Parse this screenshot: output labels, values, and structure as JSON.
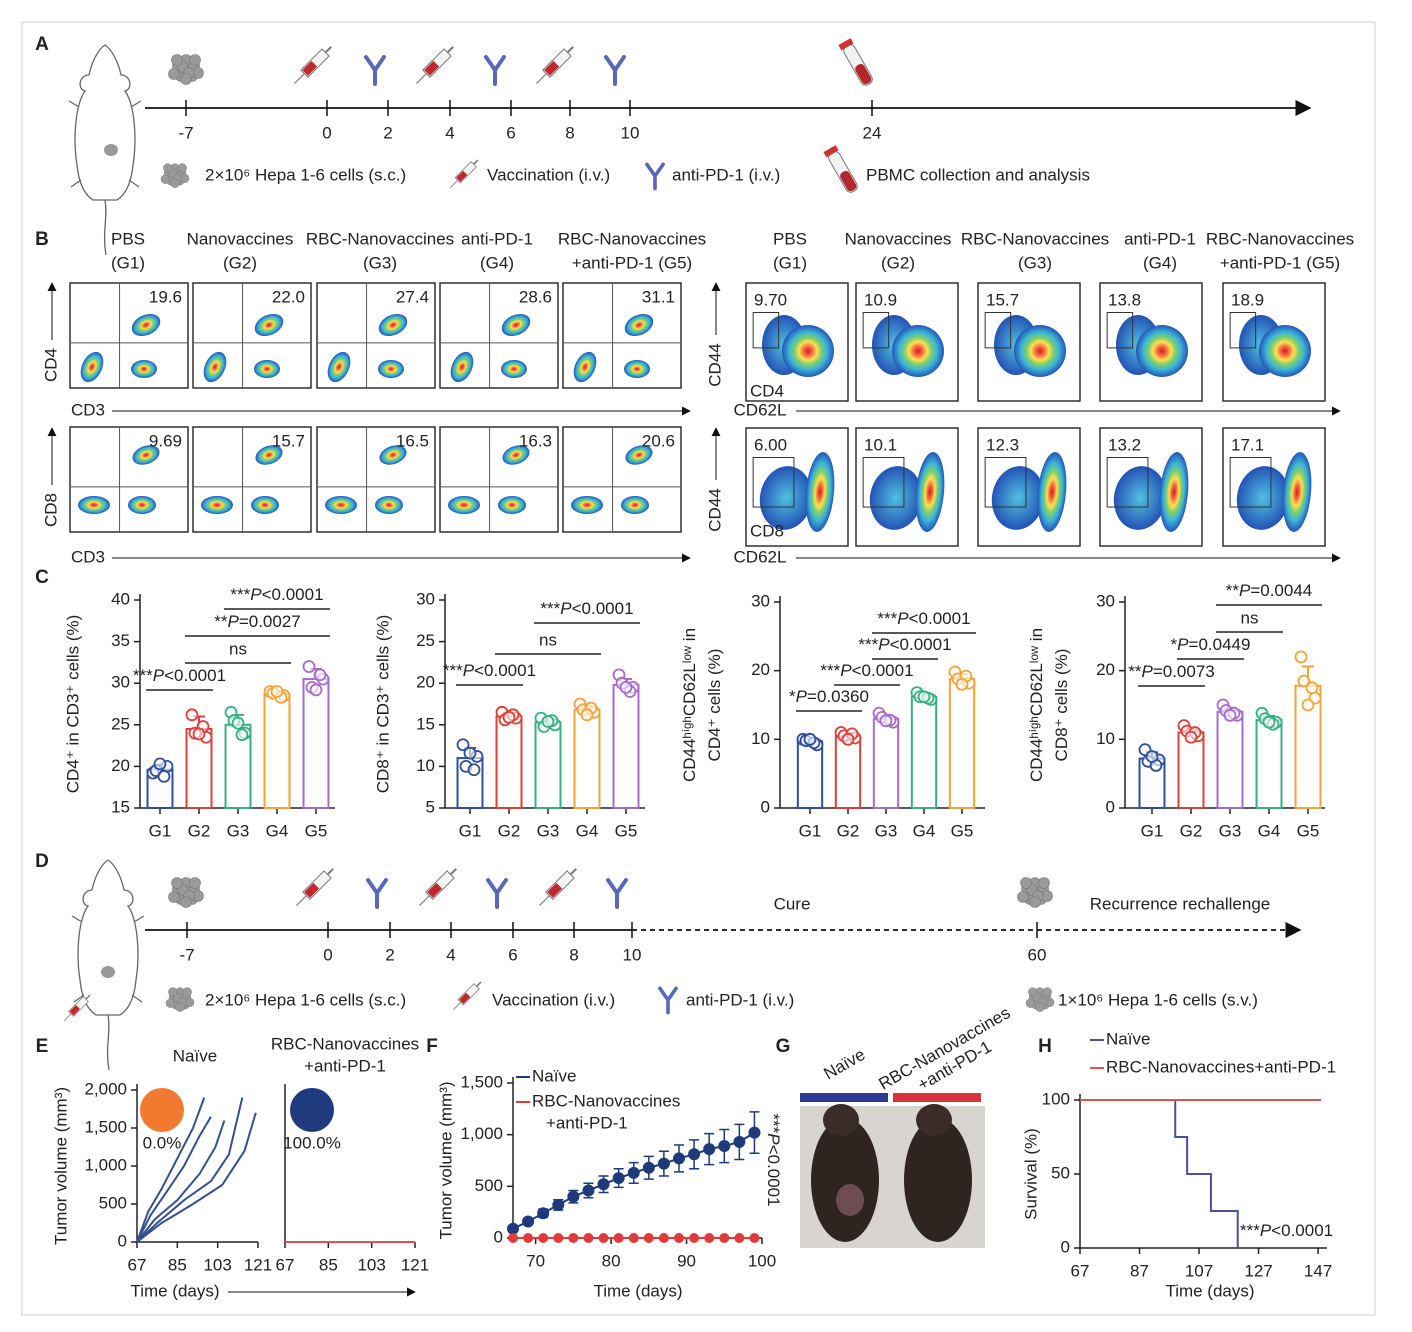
{
  "panelA": {
    "label": "A",
    "ticks": [
      -7,
      0,
      2,
      4,
      6,
      8,
      10,
      24
    ],
    "legend": [
      "2×10⁶ Hepa 1-6 cells (s.c.)",
      "Vaccination (i.v.)",
      "anti-PD-1 (i.v.)",
      "PBMC collection and analysis"
    ]
  },
  "panelB": {
    "label": "B",
    "groups": [
      [
        "PBS",
        "(G1)"
      ],
      [
        "Nanovaccines",
        "(G2)"
      ],
      [
        "RBC-Nanovaccines",
        "(G3)"
      ],
      [
        "anti-PD-1",
        "(G4)"
      ],
      [
        "RBC-Nanovaccines",
        "+anti-PD-1 (G5)"
      ]
    ],
    "left": {
      "y_labels": [
        "CD4",
        "CD8"
      ],
      "x_label": "CD3",
      "rows": [
        [
          "19.6",
          "22.0",
          "27.4",
          "28.6",
          "31.1"
        ],
        [
          "9.69",
          "15.7",
          "16.5",
          "16.3",
          "20.6"
        ]
      ]
    },
    "right": {
      "y_label": "CD44",
      "x_label": "CD62L",
      "subsets": [
        "CD4",
        "CD8"
      ],
      "rows": [
        [
          "9.70",
          "10.9",
          "15.7",
          "13.8",
          "18.9"
        ],
        [
          "6.00",
          "10.1",
          "12.3",
          "13.2",
          "17.1"
        ]
      ]
    }
  },
  "panelC": {
    "label": "C"
  },
  "panelD": {
    "label": "D",
    "ticks": [
      -7,
      0,
      2,
      4,
      6,
      8,
      10,
      60
    ],
    "phases": [
      "Cure",
      "Recurrence rechallenge"
    ],
    "legend": [
      "2×10⁶ Hepa 1-6 cells (s.c.)",
      "Vaccination (i.v.)",
      "anti-PD-1 (i.v.)",
      "1×10⁶ Hepa 1-6 cells (s.v.)"
    ]
  },
  "panelE": {
    "label": "E"
  },
  "panelF": {
    "label": "F"
  },
  "panelG": {
    "label": "G",
    "groups": [
      [
        "Naïve"
      ],
      [
        "RBC-Nanovaccines",
        "+anti-PD-1"
      ]
    ],
    "colors": [
      "#2b3a9a",
      "#d8343f"
    ]
  },
  "panelH": {
    "label": "H"
  },
  "chart_data": [
    {
      "type": "bar",
      "y_label": "CD4⁺ in CD3⁺ cells (%)",
      "categories": [
        "G1",
        "G2",
        "G3",
        "G4",
        "G5"
      ],
      "values": [
        19.6,
        24.5,
        25.0,
        28.7,
        30.5
      ],
      "errors": [
        0.6,
        1.5,
        1.2,
        0.4,
        1.2
      ],
      "points": [
        [
          19.2,
          20.0,
          19.5,
          18.8,
          20.3
        ],
        [
          26.2,
          23.5,
          24.0,
          24.8,
          23.9
        ],
        [
          26.5,
          24.0,
          25.5,
          23.8,
          25.2
        ],
        [
          29.0,
          28.5,
          28.8,
          28.3,
          29.0
        ],
        [
          32.0,
          30.5,
          29.5,
          31.0,
          29.2
        ]
      ],
      "colors": [
        "#2f4f9b",
        "#d9413a",
        "#35b07f",
        "#f0a43a",
        "#a66cc9"
      ],
      "ylim": [
        15,
        40
      ],
      "yticks": [
        15,
        20,
        25,
        30,
        35,
        40
      ],
      "annotations": [
        {
          "text": "***P<0.0001",
          "from": "G1",
          "to": "G2"
        },
        {
          "text": "ns",
          "from": "G2",
          "to": "G4"
        },
        {
          "text": "**P=0.0027",
          "from": "G2",
          "to": "G5"
        },
        {
          "text": "***P<0.0001",
          "from": "G3",
          "to": "G5"
        }
      ]
    },
    {
      "type": "bar",
      "y_label": "CD8⁺ in CD3⁺ cells (%)",
      "categories": [
        "G1",
        "G2",
        "G3",
        "G4",
        "G5"
      ],
      "values": [
        11.0,
        16.0,
        15.3,
        16.8,
        19.8
      ],
      "errors": [
        1.2,
        0.4,
        0.4,
        0.5,
        0.7
      ],
      "points": [
        [
          12.6,
          11.2,
          10.0,
          9.6,
          11.6
        ],
        [
          16.5,
          15.8,
          15.6,
          16.2,
          15.9
        ],
        [
          15.8,
          15.0,
          14.8,
          15.5,
          15.4
        ],
        [
          17.5,
          16.5,
          16.8,
          17.0,
          16.2
        ],
        [
          21.0,
          19.5,
          20.0,
          19.0,
          19.5
        ]
      ],
      "colors": [
        "#2f4f9b",
        "#d9413a",
        "#35b07f",
        "#f0a43a",
        "#a66cc9"
      ],
      "ylim": [
        5,
        30
      ],
      "yticks": [
        5,
        10,
        15,
        20,
        25,
        30
      ],
      "annotations": [
        {
          "text": "***P<0.0001",
          "from": "G1",
          "to": "G2"
        },
        {
          "text": "ns",
          "from": "G2",
          "to": "G4"
        },
        {
          "text": "***P<0.0001",
          "from": "G3",
          "to": "G5"
        }
      ]
    },
    {
      "type": "bar",
      "y_label": [
        "CD44ʰⁱᵍʰCD62Lˡᵒʷ in",
        "CD4⁺ cells (%)"
      ],
      "categories": [
        "G1",
        "G2",
        "G3",
        "G4",
        "G5"
      ],
      "values": [
        9.7,
        10.5,
        13.0,
        16.2,
        18.8
      ],
      "errors": [
        0.4,
        0.4,
        0.5,
        0.4,
        0.7
      ],
      "points": [
        [
          10.0,
          9.2,
          9.8,
          9.5,
          10.0
        ],
        [
          11.0,
          10.2,
          10.5,
          10.8,
          10.0
        ],
        [
          13.8,
          12.5,
          13.2,
          12.8,
          12.7
        ],
        [
          16.8,
          15.8,
          16.2,
          16.0,
          16.2
        ],
        [
          19.8,
          18.2,
          18.8,
          19.2,
          18.0
        ]
      ],
      "colors": [
        "#2f4f9b",
        "#d9413a",
        "#a66cc9",
        "#35b07f",
        "#f0a43a"
      ],
      "ylim": [
        0,
        30
      ],
      "yticks": [
        0,
        10,
        20,
        30
      ],
      "annotations": [
        {
          "text": "*P=0.0360",
          "from": "G1",
          "to": "G2"
        },
        {
          "text": "***P<0.0001",
          "from": "G2",
          "to": "G3"
        },
        {
          "text": "***P<0.0001",
          "from": "G3",
          "to": "G4"
        },
        {
          "text": "***P<0.0001",
          "from": "G3",
          "to": "G5"
        }
      ]
    },
    {
      "type": "bar",
      "y_label": [
        "CD44ʰⁱᵍʰCD62Lˡᵒʷ in",
        "CD8⁺ cells (%)"
      ],
      "categories": [
        "G1",
        "G2",
        "G3",
        "G4",
        "G5"
      ],
      "values": [
        7.2,
        11.0,
        14.0,
        12.8,
        17.8
      ],
      "errors": [
        0.9,
        0.6,
        0.6,
        0.6,
        2.8
      ],
      "points": [
        [
          8.5,
          7.0,
          6.8,
          6.2,
          7.5
        ],
        [
          12.0,
          10.5,
          11.2,
          11.0,
          10.3
        ],
        [
          15.0,
          13.5,
          14.2,
          13.8,
          13.5
        ],
        [
          13.8,
          12.5,
          13.0,
          12.2,
          12.5
        ],
        [
          22.0,
          16.0,
          18.5,
          17.5,
          15.0
        ]
      ],
      "colors": [
        "#2f4f9b",
        "#d9413a",
        "#a66cc9",
        "#35b07f",
        "#f0a43a"
      ],
      "ylim": [
        0,
        30
      ],
      "yticks": [
        0,
        10,
        20,
        30
      ],
      "annotations": [
        {
          "text": "**P=0.0073",
          "from": "G1",
          "to": "G2"
        },
        {
          "text": "*P=0.0449",
          "from": "G2",
          "to": "G3"
        },
        {
          "text": "ns",
          "from": "G3",
          "to": "G4"
        },
        {
          "text": "**P=0.0044",
          "from": "G3",
          "to": "G5"
        }
      ]
    },
    {
      "type": "line",
      "title": "Naïve",
      "y_label": "Tumor volume (mm³)",
      "x_label": "Time (days)",
      "xlim": [
        67,
        121
      ],
      "xticks": [
        67,
        85,
        103,
        121
      ],
      "ylim": [
        0,
        2000
      ],
      "yticks": [
        0,
        500,
        {
          "value": 1000,
          "label": "1,000"
        },
        {
          "value": 1500,
          "label": "1,500"
        },
        {
          "value": 2000,
          "label": "2,000"
        }
      ],
      "inset": {
        "label": "0.0%",
        "color": "#f07a30"
      },
      "series": [
        {
          "color": "#35508f",
          "x": [
            67,
            72,
            78,
            85,
            92,
            97
          ],
          "values": [
            0,
            400,
            700,
            1100,
            1500,
            1900
          ]
        },
        {
          "color": "#35508f",
          "x": [
            67,
            73,
            80,
            88,
            95,
            100
          ],
          "values": [
            0,
            350,
            650,
            1000,
            1400,
            1650
          ]
        },
        {
          "color": "#35508f",
          "x": [
            67,
            75,
            85,
            95,
            102,
            106
          ],
          "values": [
            0,
            300,
            550,
            900,
            1250,
            1600
          ]
        },
        {
          "color": "#35508f",
          "x": [
            67,
            76,
            88,
            100,
            108,
            114
          ],
          "values": [
            0,
            250,
            550,
            800,
            1150,
            1900
          ]
        },
        {
          "color": "#35508f",
          "x": [
            67,
            78,
            92,
            105,
            115,
            120
          ],
          "values": [
            0,
            250,
            500,
            750,
            1200,
            1700
          ]
        }
      ]
    },
    {
      "type": "line",
      "title": [
        "RBC-Nanovaccines",
        "+anti-PD-1"
      ],
      "xlim": [
        67,
        121
      ],
      "xticks": [
        67,
        85,
        103,
        121
      ],
      "ylim": [
        0,
        2000
      ],
      "inset": {
        "label": "100.0%",
        "color": "#1f3b7e"
      },
      "series": [
        {
          "color": "#d9534f",
          "x": [
            67,
            121
          ],
          "values": [
            0,
            0
          ]
        }
      ]
    },
    {
      "type": "line",
      "y_label": "Tumor volume (mm³)",
      "x_label": "Time (days)",
      "xlim": [
        67,
        100
      ],
      "xticks": [
        70,
        80,
        90,
        100
      ],
      "ylim": [
        0,
        1500
      ],
      "yticks": [
        0,
        500,
        {
          "value": 1000,
          "label": "1,000"
        },
        {
          "value": 1500,
          "label": "1,500"
        }
      ],
      "x": [
        67,
        69,
        71,
        73,
        75,
        77,
        79,
        81,
        83,
        85,
        87,
        89,
        91,
        93,
        95,
        97,
        99
      ],
      "series": [
        {
          "name": [
            "Naïve"
          ],
          "color": "#1f3a78",
          "values": [
            90,
            160,
            240,
            320,
            400,
            460,
            520,
            580,
            630,
            680,
            720,
            770,
            810,
            860,
            890,
            930,
            1020
          ],
          "errors": [
            20,
            30,
            40,
            50,
            60,
            70,
            80,
            90,
            100,
            110,
            120,
            130,
            140,
            150,
            160,
            170,
            200
          ]
        },
        {
          "name": [
            "RBC-Nanovaccines",
            "+anti-PD-1"
          ],
          "color": "#e03a3a",
          "values": [
            0,
            0,
            0,
            0,
            0,
            0,
            0,
            0,
            0,
            0,
            0,
            0,
            0,
            0,
            0,
            0,
            0
          ]
        }
      ],
      "annotation": "***P<0.0001"
    },
    {
      "type": "step",
      "y_label": "Survival (%)",
      "x_label": "Time (days)",
      "xlim": [
        67,
        150
      ],
      "xticks": [
        67,
        87,
        107,
        127,
        147
      ],
      "ylim": [
        0,
        100
      ],
      "yticks": [
        0,
        50,
        100
      ],
      "series": [
        {
          "name": [
            "Naïve"
          ],
          "color": "#4b4f9a",
          "x": [
            67,
            99,
            103,
            111,
            120
          ],
          "values": [
            100,
            75,
            50,
            25,
            0
          ]
        },
        {
          "name": [
            "RBC-Nanovaccines+anti-PD-1"
          ],
          "color": "#d9534f",
          "x": [
            67,
            148
          ],
          "values": [
            100,
            100
          ]
        }
      ],
      "annotation": "***P<0.0001"
    }
  ]
}
